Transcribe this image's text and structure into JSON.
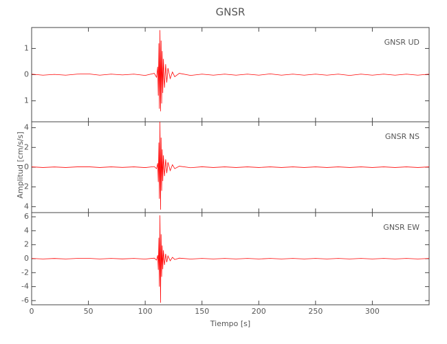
{
  "chart_data": [
    {
      "type": "line",
      "title": "GNSR",
      "annotation": "GNSR   UD",
      "x": [
        0,
        10,
        20,
        30,
        40,
        50,
        60,
        70,
        80,
        90,
        100,
        108,
        110,
        111,
        111.5,
        112,
        112.5,
        113,
        113.5,
        114,
        114.5,
        115,
        115.5,
        116,
        117,
        118,
        119,
        120,
        122,
        124,
        126,
        130,
        140,
        150,
        160,
        170,
        180,
        190,
        200,
        210,
        220,
        230,
        240,
        250,
        260,
        270,
        280,
        290,
        300,
        310,
        320,
        330,
        340,
        350
      ],
      "series": [
        {
          "name": "UD",
          "color": "#ff0000",
          "values": [
            0.02,
            -0.02,
            0.01,
            -0.02,
            0.02,
            0.03,
            -0.02,
            0.02,
            -0.01,
            0.02,
            -0.03,
            0.05,
            -0.1,
            0.3,
            -0.8,
            1.2,
            -1.3,
            1.7,
            -1.4,
            1.3,
            -1.1,
            0.9,
            -0.7,
            0.6,
            -0.5,
            0.4,
            -0.3,
            0.25,
            -0.15,
            0.1,
            -0.08,
            0.05,
            -0.03,
            0.02,
            -0.02,
            0.02,
            -0.02,
            0.02,
            -0.02,
            0.03,
            -0.02,
            0.02,
            -0.02,
            0.02,
            -0.02,
            0.02,
            -0.03,
            0.02,
            -0.02,
            0.02,
            -0.02,
            0.02,
            -0.02,
            0.02
          ]
        }
      ],
      "xlim": [
        0,
        350
      ],
      "ylim": [
        -1.8,
        1.8
      ],
      "yticks": [
        {
          "value": -1,
          "label": "1"
        },
        0,
        1
      ]
    },
    {
      "type": "line",
      "annotation": "GNSR   NS",
      "ylabel": "Amplitud  [cm/s/s]",
      "x": [
        0,
        10,
        20,
        30,
        40,
        50,
        60,
        70,
        80,
        90,
        100,
        108,
        110,
        111,
        111.5,
        112,
        112.5,
        113,
        113.5,
        114,
        114.5,
        115,
        115.5,
        116,
        117,
        118,
        119,
        120,
        122,
        124,
        126,
        130,
        140,
        150,
        160,
        170,
        180,
        190,
        200,
        210,
        220,
        230,
        240,
        250,
        260,
        270,
        280,
        290,
        300,
        310,
        320,
        330,
        340,
        350
      ],
      "series": [
        {
          "name": "NS",
          "color": "#ff0000",
          "values": [
            0.03,
            -0.03,
            0.02,
            -0.03,
            0.03,
            0.04,
            -0.03,
            0.03,
            -0.02,
            0.03,
            -0.04,
            0.06,
            -0.15,
            0.4,
            -1.5,
            2.5,
            -3.2,
            4.6,
            -4.3,
            3.0,
            -2.4,
            1.8,
            -1.4,
            1.2,
            -0.9,
            0.8,
            -0.6,
            0.5,
            -0.35,
            0.25,
            -0.15,
            0.1,
            -0.05,
            0.04,
            -0.03,
            0.03,
            -0.03,
            0.03,
            -0.03,
            0.03,
            -0.03,
            0.03,
            -0.03,
            0.03,
            -0.03,
            0.03,
            -0.03,
            0.03,
            -0.03,
            0.03,
            -0.03,
            0.03,
            -0.03,
            0.03
          ]
        }
      ],
      "xlim": [
        0,
        350
      ],
      "ylim": [
        -4.6,
        4.6
      ],
      "yticks": [
        {
          "value": -4,
          "label": "4"
        },
        {
          "value": -2,
          "label": "2"
        },
        0,
        2,
        4
      ]
    },
    {
      "type": "line",
      "annotation": "GNSR   EW",
      "xlabel": "Tiempo  [s]",
      "x": [
        0,
        10,
        20,
        30,
        40,
        50,
        60,
        70,
        80,
        90,
        100,
        108,
        110,
        111,
        111.5,
        112,
        112.5,
        113,
        113.5,
        114,
        114.5,
        115,
        115.5,
        116,
        117,
        118,
        119,
        120,
        122,
        124,
        126,
        130,
        140,
        150,
        160,
        170,
        180,
        190,
        200,
        210,
        220,
        230,
        240,
        250,
        260,
        270,
        280,
        290,
        300,
        310,
        320,
        330,
        340,
        350
      ],
      "series": [
        {
          "name": "EW",
          "color": "#ff0000",
          "values": [
            0.04,
            -0.04,
            0.03,
            -0.04,
            0.04,
            0.05,
            -0.04,
            0.04,
            -0.03,
            0.04,
            -0.05,
            0.08,
            -0.2,
            0.5,
            -1.6,
            3.0,
            -4.0,
            6.2,
            -6.3,
            3.5,
            -2.6,
            1.9,
            -1.5,
            1.2,
            -0.9,
            0.7,
            -0.5,
            0.4,
            -0.3,
            0.2,
            -0.12,
            0.08,
            -0.05,
            0.04,
            -0.04,
            0.04,
            -0.04,
            0.04,
            -0.04,
            0.04,
            -0.04,
            0.04,
            -0.04,
            0.04,
            -0.04,
            0.04,
            -0.04,
            0.04,
            -0.04,
            0.04,
            -0.04,
            0.04,
            -0.04,
            0.04
          ]
        }
      ],
      "xlim": [
        0,
        350
      ],
      "ylim": [
        -6.6,
        6.6
      ],
      "yticks": [
        -6,
        -4,
        -2,
        0,
        2,
        4,
        6
      ],
      "xticks": [
        0,
        50,
        100,
        150,
        200,
        250,
        300
      ]
    }
  ]
}
